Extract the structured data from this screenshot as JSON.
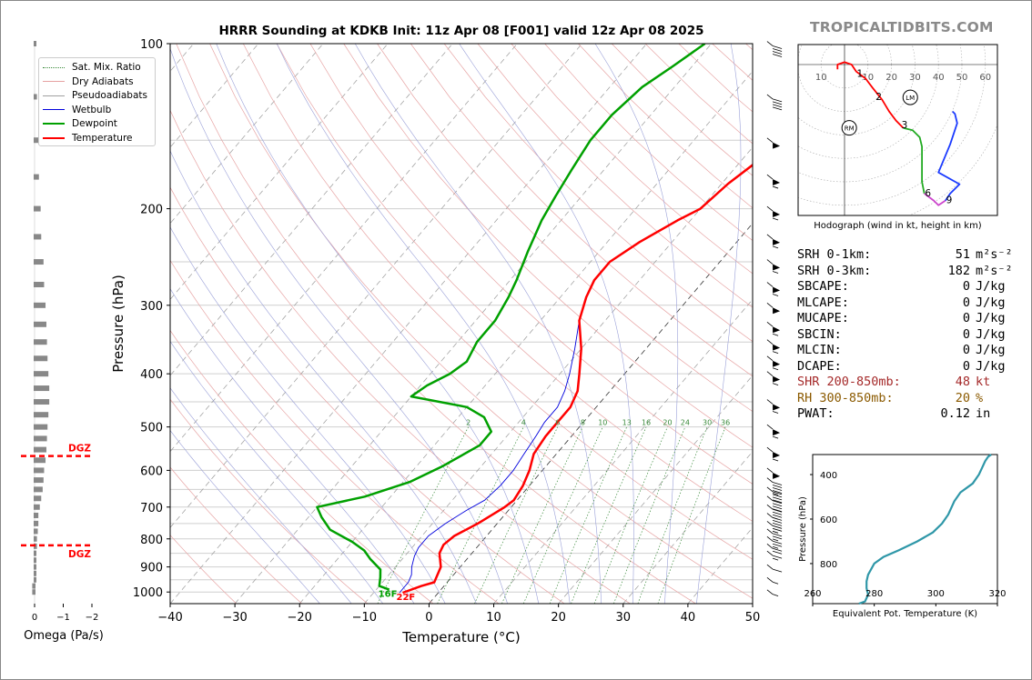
{
  "header": {
    "title": "HRRR Sounding at KDKB Init: 11z Apr 08 [F001] valid 12z Apr 08 2025",
    "brand": "TROPICALTIDBITS.COM"
  },
  "legend": [
    {
      "label": "Sat. Mix. Ratio",
      "color": "#3a8a3a",
      "style": "dotted",
      "width": 1
    },
    {
      "label": "Dry Adiabats",
      "color": "#e6a0a0",
      "style": "solid",
      "width": 1
    },
    {
      "label": "Pseudoadiabats",
      "color": "#a0a0a0",
      "style": "solid",
      "width": 1
    },
    {
      "label": "Wetbulb",
      "color": "#0000dd",
      "style": "solid",
      "width": 1
    },
    {
      "label": "Dewpoint",
      "color": "#00a000",
      "style": "solid",
      "width": 2.5
    },
    {
      "label": "Temperature",
      "color": "#ff0000",
      "style": "solid",
      "width": 2.5
    }
  ],
  "chart_data": [
    {
      "type": "line",
      "name": "skewt",
      "xlabel": "Temperature (°C)",
      "ylabel": "Pressure (hPa)",
      "xlim": [
        -40,
        50
      ],
      "ylim": [
        1050,
        100
      ],
      "log_y": true,
      "x_ticks": [
        "−40",
        "−30",
        "−20",
        "−10",
        "0",
        "10",
        "20",
        "30",
        "40",
        "50"
      ],
      "y_ticks": [
        "100",
        "200",
        "300",
        "400",
        "500",
        "600",
        "700",
        "800",
        "900",
        "1000"
      ],
      "mixing_ratio_labels": [
        "2",
        "4",
        "6",
        "8",
        "10",
        "13",
        "16",
        "20",
        "24",
        "30",
        "36"
      ],
      "surface_labels": {
        "dewpoint": "16F",
        "temperature": "22F"
      },
      "series": [
        {
          "name": "Temperature",
          "color": "#ff0000",
          "points": [
            [
              -5.5,
              1003
            ],
            [
              -3.5,
              975
            ],
            [
              -2,
              960
            ],
            [
              -3,
              900
            ],
            [
              -5,
              850
            ],
            [
              -5.5,
              820
            ],
            [
              -5,
              790
            ],
            [
              -3,
              750
            ],
            [
              -1,
              700
            ],
            [
              -0.5,
              680
            ],
            [
              -1,
              640
            ],
            [
              -2,
              600
            ],
            [
              -3.5,
              560
            ],
            [
              -4,
              520
            ],
            [
              -4,
              490
            ],
            [
              -4,
              460
            ],
            [
              -5,
              430
            ],
            [
              -7,
              400
            ],
            [
              -10,
              360
            ],
            [
              -14,
              320
            ],
            [
              -16,
              290
            ],
            [
              -17,
              270
            ],
            [
              -17,
              250
            ],
            [
              -15,
              230
            ],
            [
              -12,
              210
            ],
            [
              -10,
              200
            ],
            [
              -9,
              180
            ],
            [
              -7,
              160
            ],
            [
              -6,
              145
            ],
            [
              -5,
              130
            ],
            [
              -4,
              115
            ],
            [
              -3,
              100
            ]
          ]
        },
        {
          "name": "Dewpoint",
          "color": "#00a000",
          "points": [
            [
              -8,
              990
            ],
            [
              -10,
              975
            ],
            [
              -11,
              940
            ],
            [
              -12,
              910
            ],
            [
              -15,
              870
            ],
            [
              -17,
              840
            ],
            [
              -20,
              810
            ],
            [
              -25,
              770
            ],
            [
              -28,
              730
            ],
            [
              -30,
              700
            ],
            [
              -24,
              670
            ],
            [
              -19,
              630
            ],
            [
              -16,
              590
            ],
            [
              -13,
              540
            ],
            [
              -13,
              510
            ],
            [
              -16,
              480
            ],
            [
              -20,
              460
            ],
            [
              -30,
              440
            ],
            [
              -29,
              420
            ],
            [
              -27,
              400
            ],
            [
              -26,
              380
            ],
            [
              -27,
              350
            ],
            [
              -27,
              320
            ],
            [
              -28,
              290
            ],
            [
              -29,
              270
            ],
            [
              -31,
              240
            ],
            [
              -33,
              210
            ],
            [
              -34,
              190
            ],
            [
              -35,
              170
            ],
            [
              -36,
              150
            ],
            [
              -36,
              135
            ],
            [
              -35,
              120
            ],
            [
              -33,
              110
            ],
            [
              -31,
              100
            ]
          ]
        },
        {
          "name": "Wetbulb",
          "color": "#0000dd",
          "points": [
            [
              -6,
              1003
            ],
            [
              -6,
              960
            ],
            [
              -6.5,
              930
            ],
            [
              -7.5,
              900
            ],
            [
              -8.5,
              860
            ],
            [
              -9,
              830
            ],
            [
              -9,
              790
            ],
            [
              -8,
              750
            ],
            [
              -6.5,
              710
            ],
            [
              -5,
              680
            ],
            [
              -4.5,
              640
            ],
            [
              -4.5,
              600
            ],
            [
              -5,
              560
            ],
            [
              -5.5,
              520
            ],
            [
              -6,
              490
            ],
            [
              -6,
              460
            ],
            [
              -7,
              430
            ],
            [
              -8.5,
              400
            ],
            [
              -11,
              360
            ],
            [
              -14,
              320
            ],
            [
              -16,
              290
            ],
            [
              -17,
              270
            ],
            [
              -17,
              250
            ],
            [
              -15,
              230
            ],
            [
              -12,
              210
            ],
            [
              -10,
              200
            ],
            [
              -9,
              180
            ],
            [
              -7,
              160
            ],
            [
              -6,
              145
            ],
            [
              -5,
              130
            ],
            [
              -4,
              115
            ],
            [
              -3,
              100
            ]
          ]
        }
      ]
    },
    {
      "type": "line",
      "name": "hodograph",
      "title": "Hodograph (wind in kt, height in km)",
      "ring_labels": [
        "10",
        "10",
        "20",
        "30",
        "40",
        "50",
        "60"
      ],
      "height_labels": [
        "1",
        "2",
        "3",
        "6",
        "9"
      ],
      "markers": [
        "RM",
        "LM"
      ],
      "segments": [
        {
          "color": "#ff0000",
          "points": [
            [
              -3,
              -2
            ],
            [
              -3,
              0
            ],
            [
              0,
              1
            ],
            [
              3,
              0
            ],
            [
              5,
              -3
            ],
            [
              9,
              -6
            ],
            [
              12,
              -10
            ],
            [
              16,
              -15
            ],
            [
              19,
              -20
            ],
            [
              22,
              -24
            ],
            [
              25,
              -27
            ]
          ]
        },
        {
          "color": "#22aa22",
          "points": [
            [
              25,
              -27
            ],
            [
              29,
              -28
            ],
            [
              32,
              -31
            ],
            [
              33,
              -35
            ],
            [
              33,
              -42
            ],
            [
              33,
              -50
            ],
            [
              34,
              -55
            ]
          ]
        },
        {
          "color": "#cc44cc",
          "points": [
            [
              34,
              -55
            ],
            [
              38,
              -58
            ],
            [
              40,
              -60
            ],
            [
              43,
              -58
            ]
          ]
        },
        {
          "color": "#1a3aff",
          "points": [
            [
              43,
              -58
            ],
            [
              45,
              -55
            ],
            [
              49,
              -51
            ],
            [
              40,
              -46
            ],
            [
              45,
              -34
            ],
            [
              48,
              -25
            ],
            [
              47,
              -21
            ],
            [
              46,
              -20
            ]
          ]
        }
      ],
      "height_points": {
        "1": [
          5,
          -4
        ],
        "2": [
          13,
          -14
        ],
        "3": [
          24,
          -26
        ],
        "6": [
          34,
          -55
        ],
        "9": [
          43,
          -58
        ]
      }
    },
    {
      "type": "line",
      "name": "theta_e",
      "xlabel": "Equivalent Pot. Temperature (K)",
      "ylabel": "Pressure (hPa)",
      "xlim": [
        260,
        320
      ],
      "ylim": [
        980,
        310
      ],
      "x_ticks": [
        "260",
        "280",
        "300",
        "320"
      ],
      "y_ticks": [
        "400",
        "600",
        "800"
      ],
      "points": [
        [
          275,
          980
        ],
        [
          277,
          970
        ],
        [
          278,
          940
        ],
        [
          277.5,
          910
        ],
        [
          277.5,
          880
        ],
        [
          278,
          850
        ],
        [
          280,
          800
        ],
        [
          283,
          770
        ],
        [
          288,
          740
        ],
        [
          294,
          700
        ],
        [
          299,
          660
        ],
        [
          302,
          620
        ],
        [
          304,
          580
        ],
        [
          305,
          550
        ],
        [
          306,
          520
        ],
        [
          308,
          480
        ],
        [
          310,
          460
        ],
        [
          312,
          440
        ],
        [
          314,
          400
        ],
        [
          315,
          370
        ],
        [
          316,
          340
        ],
        [
          317,
          320
        ],
        [
          318,
          310
        ]
      ]
    },
    {
      "type": "bar",
      "name": "omega",
      "xlabel": "Omega (Pa/s)",
      "x_ticks": [
        "0",
        "−1",
        "−2"
      ],
      "annotations": [
        "DGZ",
        "DGZ"
      ],
      "annotation_pressures": [
        565,
        822
      ],
      "pressure_levels": [
        1000,
        975,
        950,
        925,
        900,
        875,
        850,
        825,
        800,
        775,
        750,
        725,
        700,
        675,
        650,
        625,
        600,
        575,
        550,
        525,
        500,
        475,
        450,
        425,
        400,
        375,
        350,
        325,
        300,
        275,
        250,
        225,
        200,
        175,
        150,
        125,
        100
      ],
      "values": [
        0.05,
        0.05,
        0,
        0,
        0,
        0,
        0,
        -0.05,
        -0.05,
        -0.08,
        -0.1,
        -0.1,
        -0.15,
        -0.2,
        -0.25,
        -0.28,
        -0.3,
        -0.35,
        -0.38,
        -0.4,
        -0.42,
        -0.45,
        -0.48,
        -0.48,
        -0.45,
        -0.42,
        -0.4,
        -0.38,
        -0.35,
        -0.3,
        -0.28,
        -0.2,
        -0.18,
        -0.12,
        -0.1,
        -0.05,
        0
      ]
    }
  ],
  "wind_barbs": [
    {
      "pressure": 100,
      "speed": 40
    },
    {
      "pressure": 125,
      "speed": 40
    },
    {
      "pressure": 150,
      "speed": 50
    },
    {
      "pressure": 175,
      "speed": 55
    },
    {
      "pressure": 200,
      "speed": 55
    },
    {
      "pressure": 225,
      "speed": 55
    },
    {
      "pressure": 250,
      "speed": 55
    },
    {
      "pressure": 275,
      "speed": 55
    },
    {
      "pressure": 300,
      "speed": 50
    },
    {
      "pressure": 325,
      "speed": 55
    },
    {
      "pressure": 350,
      "speed": 55
    },
    {
      "pressure": 375,
      "speed": 55
    },
    {
      "pressure": 400,
      "speed": 55
    },
    {
      "pressure": 450,
      "speed": 55
    },
    {
      "pressure": 500,
      "speed": 55
    },
    {
      "pressure": 550,
      "speed": 55
    },
    {
      "pressure": 600,
      "speed": 50
    },
    {
      "pressure": 625,
      "speed": 45
    },
    {
      "pressure": 650,
      "speed": 40
    },
    {
      "pressure": 675,
      "speed": 40
    },
    {
      "pressure": 700,
      "speed": 35
    },
    {
      "pressure": 725,
      "speed": 30
    },
    {
      "pressure": 750,
      "speed": 25
    },
    {
      "pressure": 775,
      "speed": 25
    },
    {
      "pressure": 800,
      "speed": 25
    },
    {
      "pressure": 825,
      "speed": 20
    },
    {
      "pressure": 850,
      "speed": 15
    },
    {
      "pressure": 900,
      "speed": 10
    },
    {
      "pressure": 950,
      "speed": 5
    },
    {
      "pressure": 1000,
      "speed": 5
    }
  ],
  "stats": [
    {
      "key": "SRH 0-1km:",
      "value": "51",
      "unit": "m²s⁻²",
      "color": "#000000"
    },
    {
      "key": "SRH 0-3km:",
      "value": "182",
      "unit": "m²s⁻²",
      "color": "#000000"
    },
    {
      "key": "SBCAPE:",
      "value": "0",
      "unit": "J/kg",
      "color": "#000000"
    },
    {
      "key": "MLCAPE:",
      "value": "0",
      "unit": "J/kg",
      "color": "#000000"
    },
    {
      "key": "MUCAPE:",
      "value": "0",
      "unit": "J/kg",
      "color": "#000000"
    },
    {
      "key": "SBCIN:",
      "value": "0",
      "unit": "J/kg",
      "color": "#000000"
    },
    {
      "key": "MLCIN:",
      "value": "0",
      "unit": "J/kg",
      "color": "#000000"
    },
    {
      "key": "DCAPE:",
      "value": "0",
      "unit": "J/kg",
      "color": "#000000"
    },
    {
      "key": "SHR 200-850mb:",
      "value": "48",
      "unit": "kt",
      "color": "#a52a2a"
    },
    {
      "key": "RH 300-850mb:",
      "value": "20",
      "unit": "%",
      "color": "#8b5a00"
    },
    {
      "key": "PWAT:",
      "value": "0.12",
      "unit": "in",
      "color": "#000000"
    }
  ]
}
